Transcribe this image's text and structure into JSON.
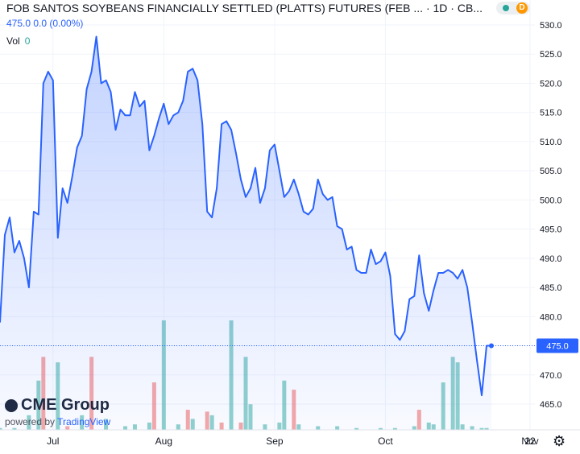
{
  "header": {
    "title": "FOB SANTOS SOYBEANS FINANCIALLY SETTLED (PLATTS) FUTURES (FEB ... · 1D · CB...",
    "quote": "475.0  0.0 (0.00%)",
    "vol_label": "Vol",
    "vol_value": "0",
    "badge_letter": "D"
  },
  "logo": {
    "brand": "CME Group",
    "powered": "powered by",
    "tv": "TradingView"
  },
  "colors": {
    "line": "#2962ff",
    "vol_up": "#26a69a",
    "vol_down": "#ef5350",
    "price_tag": "#2962ff"
  },
  "chart_data": {
    "type": "line",
    "title": "FOB SANTOS SOYBEANS FINANCIALLY SETTLED (PLATTS) FUTURES (FEB ...",
    "interval": "1D",
    "ylim": [
      460,
      533
    ],
    "yticks": [
      465,
      470,
      475,
      480,
      485,
      490,
      495,
      500,
      505,
      510,
      515,
      520,
      525,
      530
    ],
    "x_ticks": [
      {
        "label": "Jul",
        "index": 11
      },
      {
        "label": "Aug",
        "index": 34
      },
      {
        "label": "Sep",
        "index": 57
      },
      {
        "label": "Oct",
        "index": 80
      },
      {
        "label": "Nov",
        "index": 103
      },
      {
        "label": "22",
        "index": 119
      }
    ],
    "last_price": "475.0",
    "close": [
      479.0,
      494.0,
      497.0,
      491.0,
      493.0,
      490.0,
      485.0,
      498.0,
      497.5,
      520.0,
      522.0,
      520.5,
      493.5,
      502.0,
      499.5,
      504.0,
      509.0,
      511.0,
      519.0,
      522.0,
      528.0,
      520.0,
      520.5,
      518.5,
      512.0,
      515.5,
      514.5,
      514.5,
      518.5,
      516.0,
      517.0,
      508.5,
      511.0,
      514.0,
      516.5,
      513.0,
      514.5,
      515.0,
      517.0,
      522.0,
      522.5,
      520.5,
      513.0,
      498.0,
      497.0,
      502.0,
      513.0,
      513.5,
      512.0,
      508.0,
      503.5,
      500.5,
      502.0,
      505.5,
      499.5,
      502.0,
      508.5,
      509.5,
      505.0,
      500.5,
      501.5,
      503.5,
      501.0,
      498.0,
      497.5,
      498.5,
      503.5,
      501.0,
      500.0,
      500.5,
      495.5,
      495.0,
      491.5,
      492.0,
      488.0,
      487.5,
      487.5,
      491.5,
      489.0,
      489.5,
      491.0,
      487.0,
      477.0,
      476.0,
      477.5,
      483.0,
      483.5,
      490.5,
      484.0,
      481.0,
      484.5,
      487.5,
      487.5,
      488.0,
      487.5,
      486.5,
      488.0,
      485.0,
      479.0,
      472.5,
      466.5,
      475.0,
      475.0
    ],
    "volume": [
      {
        "i": 0,
        "v": 1,
        "up": true
      },
      {
        "i": 3,
        "v": 1,
        "up": true
      },
      {
        "i": 6,
        "v": 8,
        "up": true
      },
      {
        "i": 8,
        "v": 27,
        "up": true
      },
      {
        "i": 9,
        "v": 40,
        "up": false
      },
      {
        "i": 12,
        "v": 37,
        "up": true
      },
      {
        "i": 14,
        "v": 2,
        "up": false
      },
      {
        "i": 17,
        "v": 8,
        "up": true
      },
      {
        "i": 19,
        "v": 40,
        "up": false
      },
      {
        "i": 22,
        "v": 6,
        "up": true
      },
      {
        "i": 26,
        "v": 2,
        "up": true
      },
      {
        "i": 28,
        "v": 3,
        "up": true
      },
      {
        "i": 31,
        "v": 4,
        "up": true
      },
      {
        "i": 32,
        "v": 26,
        "up": false
      },
      {
        "i": 34,
        "v": 60,
        "up": true
      },
      {
        "i": 37,
        "v": 3,
        "up": true
      },
      {
        "i": 39,
        "v": 11,
        "up": false
      },
      {
        "i": 40,
        "v": 6,
        "up": true
      },
      {
        "i": 43,
        "v": 10,
        "up": false
      },
      {
        "i": 44,
        "v": 8,
        "up": true
      },
      {
        "i": 46,
        "v": 4,
        "up": false
      },
      {
        "i": 48,
        "v": 60,
        "up": true
      },
      {
        "i": 50,
        "v": 4,
        "up": false
      },
      {
        "i": 51,
        "v": 40,
        "up": true
      },
      {
        "i": 52,
        "v": 14,
        "up": true
      },
      {
        "i": 55,
        "v": 3,
        "up": true
      },
      {
        "i": 58,
        "v": 4,
        "up": true
      },
      {
        "i": 59,
        "v": 27,
        "up": true
      },
      {
        "i": 61,
        "v": 22,
        "up": false
      },
      {
        "i": 62,
        "v": 3,
        "up": true
      },
      {
        "i": 66,
        "v": 2,
        "up": true
      },
      {
        "i": 70,
        "v": 2,
        "up": true
      },
      {
        "i": 74,
        "v": 1,
        "up": true
      },
      {
        "i": 79,
        "v": 1,
        "up": true
      },
      {
        "i": 82,
        "v": 1,
        "up": true
      },
      {
        "i": 86,
        "v": 2,
        "up": true
      },
      {
        "i": 87,
        "v": 11,
        "up": false
      },
      {
        "i": 89,
        "v": 4,
        "up": true
      },
      {
        "i": 90,
        "v": 3,
        "up": true
      },
      {
        "i": 92,
        "v": 26,
        "up": true
      },
      {
        "i": 94,
        "v": 40,
        "up": true
      },
      {
        "i": 95,
        "v": 37,
        "up": true
      },
      {
        "i": 96,
        "v": 3,
        "up": true
      },
      {
        "i": 98,
        "v": 2,
        "up": true
      },
      {
        "i": 100,
        "v": 1,
        "up": true
      },
      {
        "i": 101,
        "v": 1,
        "up": true
      }
    ]
  }
}
